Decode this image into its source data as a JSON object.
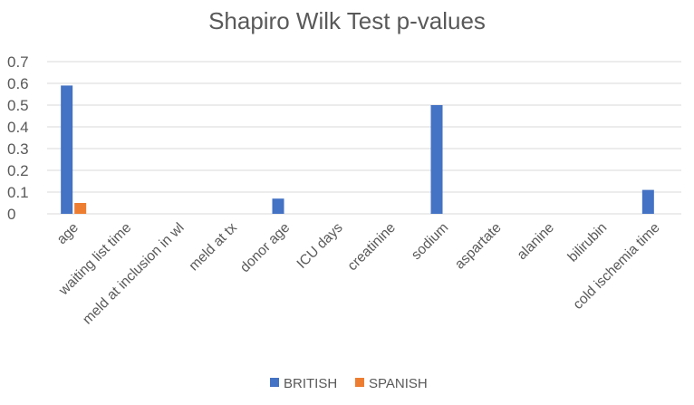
{
  "chart_data": {
    "type": "bar",
    "title": "Shapiro Wilk Test p-values",
    "xlabel": "",
    "ylabel": "",
    "categories": [
      "age",
      "waiting list time",
      "meld at inclusion in wl",
      "meld at tx",
      "donor age",
      "ICU days",
      "creatinine",
      "sodium",
      "aspartate",
      "alanine",
      "bilirubin",
      "cold ischemia time"
    ],
    "series": [
      {
        "name": "BRITISH",
        "color": "#4472c4",
        "values": [
          0.59,
          0,
          0,
          0,
          0.07,
          0,
          0,
          0.5,
          0,
          0,
          0,
          0.11
        ]
      },
      {
        "name": "SPANISH",
        "color": "#ed7d31",
        "values": [
          0.05,
          0,
          0,
          0,
          0,
          0,
          0,
          0,
          0,
          0,
          0,
          0
        ]
      }
    ],
    "ylim": [
      0,
      0.7
    ],
    "yticks": [
      "0",
      "0.1",
      "0.2",
      "0.3",
      "0.4",
      "0.5",
      "0.6",
      "0.7"
    ],
    "grid": true,
    "legend": "bottom"
  }
}
